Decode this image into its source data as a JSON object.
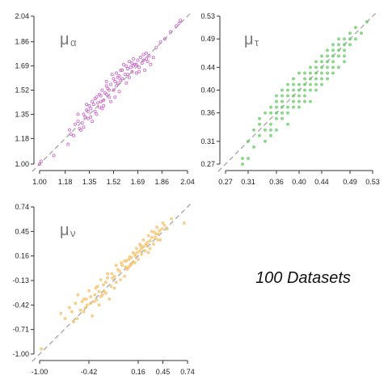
{
  "chart_data": [
    {
      "type": "scatter",
      "label": {
        "greek": "μ",
        "sub": "α"
      },
      "color": "#cc66cc",
      "marker": "open-circle",
      "xlim": [
        1.0,
        2.04
      ],
      "ylim": [
        1.0,
        2.04
      ],
      "x_ticks": [
        "1.00",
        "1.18",
        "1.35",
        "1.52",
        "1.69",
        "1.86",
        "2.04"
      ],
      "y_ticks": [
        "1.00",
        "1.18",
        "1.35",
        "1.52",
        "1.69",
        "1.86",
        "2.04"
      ],
      "reference_line": "y = x (dashed grey)",
      "points": [
        [
          1.0,
          1.0
        ],
        [
          1.01,
          1.02
        ],
        [
          1.1,
          1.06
        ],
        [
          1.2,
          1.14
        ],
        [
          1.21,
          1.24
        ],
        [
          1.22,
          1.21
        ],
        [
          1.25,
          1.28
        ],
        [
          1.27,
          1.3
        ],
        [
          1.28,
          1.25
        ],
        [
          1.29,
          1.24
        ],
        [
          1.3,
          1.29
        ],
        [
          1.31,
          1.35
        ],
        [
          1.32,
          1.33
        ],
        [
          1.33,
          1.38
        ],
        [
          1.34,
          1.37
        ],
        [
          1.35,
          1.41
        ],
        [
          1.36,
          1.39
        ],
        [
          1.37,
          1.44
        ],
        [
          1.37,
          1.3
        ],
        [
          1.38,
          1.42
        ],
        [
          1.39,
          1.46
        ],
        [
          1.4,
          1.35
        ],
        [
          1.4,
          1.47
        ],
        [
          1.41,
          1.43
        ],
        [
          1.42,
          1.4
        ],
        [
          1.43,
          1.48
        ],
        [
          1.44,
          1.52
        ],
        [
          1.44,
          1.39
        ],
        [
          1.45,
          1.45
        ],
        [
          1.46,
          1.5
        ],
        [
          1.47,
          1.55
        ],
        [
          1.47,
          1.58
        ],
        [
          1.48,
          1.53
        ],
        [
          1.49,
          1.47
        ],
        [
          1.5,
          1.56
        ],
        [
          1.51,
          1.63
        ],
        [
          1.52,
          1.6
        ],
        [
          1.52,
          1.52
        ],
        [
          1.53,
          1.58
        ],
        [
          1.54,
          1.64
        ],
        [
          1.55,
          1.57
        ],
        [
          1.56,
          1.51
        ],
        [
          1.56,
          1.62
        ],
        [
          1.57,
          1.66
        ],
        [
          1.58,
          1.6
        ],
        [
          1.59,
          1.7
        ],
        [
          1.6,
          1.63
        ],
        [
          1.61,
          1.57
        ],
        [
          1.62,
          1.67
        ],
        [
          1.63,
          1.72
        ],
        [
          1.63,
          1.61
        ],
        [
          1.64,
          1.68
        ],
        [
          1.65,
          1.65
        ],
        [
          1.66,
          1.74
        ],
        [
          1.67,
          1.7
        ],
        [
          1.68,
          1.64
        ],
        [
          1.69,
          1.73
        ],
        [
          1.7,
          1.68
        ],
        [
          1.71,
          1.75
        ],
        [
          1.72,
          1.71
        ],
        [
          1.73,
          1.77
        ],
        [
          1.74,
          1.66
        ],
        [
          1.75,
          1.74
        ],
        [
          1.76,
          1.72
        ],
        [
          1.77,
          1.76
        ],
        [
          1.78,
          1.7
        ],
        [
          1.8,
          1.75
        ],
        [
          1.82,
          1.82
        ],
        [
          1.85,
          1.86
        ],
        [
          1.88,
          1.88
        ],
        [
          1.92,
          1.93
        ],
        [
          1.96,
          1.97
        ],
        [
          1.98,
          1.99
        ],
        [
          1.99,
          2.01
        ],
        [
          1.27,
          1.35
        ],
        [
          1.33,
          1.42
        ],
        [
          1.39,
          1.37
        ],
        [
          1.45,
          1.41
        ],
        [
          1.49,
          1.52
        ],
        [
          1.54,
          1.55
        ],
        [
          1.58,
          1.66
        ],
        [
          1.62,
          1.63
        ],
        [
          1.66,
          1.69
        ],
        [
          1.7,
          1.65
        ],
        [
          1.31,
          1.26
        ],
        [
          1.42,
          1.49
        ],
        [
          1.5,
          1.44
        ],
        [
          1.57,
          1.59
        ],
        [
          1.65,
          1.71
        ],
        [
          1.73,
          1.73
        ],
        [
          1.24,
          1.2
        ],
        [
          1.36,
          1.33
        ],
        [
          1.47,
          1.49
        ],
        [
          1.53,
          1.47
        ],
        [
          1.61,
          1.69
        ],
        [
          1.68,
          1.7
        ],
        [
          1.75,
          1.78
        ],
        [
          1.43,
          1.44
        ],
        [
          1.34,
          1.32
        ],
        [
          1.55,
          1.61
        ]
      ]
    },
    {
      "type": "scatter",
      "label": {
        "greek": "μ",
        "sub": "τ"
      },
      "color": "#66cc66",
      "marker": "filled-dot",
      "xlim": [
        0.27,
        0.53
      ],
      "ylim": [
        0.27,
        0.53
      ],
      "x_ticks": [
        "0.27",
        "0.31",
        "0.36",
        "0.40",
        "0.44",
        "0.49",
        "0.53"
      ],
      "y_ticks": [
        "0.27",
        "0.31",
        "0.36",
        "0.40",
        "0.44",
        "0.49",
        "0.53"
      ],
      "reference_line": "y = x (dashed grey)",
      "points": [
        [
          0.3,
          0.27
        ],
        [
          0.3,
          0.28
        ],
        [
          0.31,
          0.28
        ],
        [
          0.32,
          0.3
        ],
        [
          0.33,
          0.32
        ],
        [
          0.33,
          0.34
        ],
        [
          0.34,
          0.31
        ],
        [
          0.34,
          0.33
        ],
        [
          0.35,
          0.33
        ],
        [
          0.35,
          0.36
        ],
        [
          0.35,
          0.37
        ],
        [
          0.36,
          0.35
        ],
        [
          0.36,
          0.36
        ],
        [
          0.36,
          0.38
        ],
        [
          0.37,
          0.37
        ],
        [
          0.37,
          0.4
        ],
        [
          0.37,
          0.35
        ],
        [
          0.38,
          0.39
        ],
        [
          0.38,
          0.36
        ],
        [
          0.38,
          0.41
        ],
        [
          0.39,
          0.38
        ],
        [
          0.39,
          0.37
        ],
        [
          0.39,
          0.4
        ],
        [
          0.4,
          0.39
        ],
        [
          0.4,
          0.41
        ],
        [
          0.4,
          0.38
        ],
        [
          0.41,
          0.4
        ],
        [
          0.41,
          0.42
        ],
        [
          0.41,
          0.39
        ],
        [
          0.42,
          0.41
        ],
        [
          0.42,
          0.43
        ],
        [
          0.42,
          0.38
        ],
        [
          0.43,
          0.42
        ],
        [
          0.43,
          0.44
        ],
        [
          0.43,
          0.4
        ],
        [
          0.44,
          0.43
        ],
        [
          0.44,
          0.45
        ],
        [
          0.44,
          0.41
        ],
        [
          0.45,
          0.44
        ],
        [
          0.45,
          0.46
        ],
        [
          0.45,
          0.42
        ],
        [
          0.46,
          0.45
        ],
        [
          0.46,
          0.47
        ],
        [
          0.46,
          0.43
        ],
        [
          0.47,
          0.46
        ],
        [
          0.47,
          0.48
        ],
        [
          0.47,
          0.44
        ],
        [
          0.48,
          0.47
        ],
        [
          0.48,
          0.49
        ],
        [
          0.48,
          0.45
        ],
        [
          0.49,
          0.48
        ],
        [
          0.49,
          0.5
        ],
        [
          0.5,
          0.49
        ],
        [
          0.5,
          0.51
        ],
        [
          0.51,
          0.5
        ],
        [
          0.52,
          0.52
        ],
        [
          0.35,
          0.34
        ],
        [
          0.36,
          0.33
        ],
        [
          0.37,
          0.38
        ],
        [
          0.38,
          0.37
        ],
        [
          0.39,
          0.41
        ],
        [
          0.4,
          0.4
        ],
        [
          0.41,
          0.43
        ],
        [
          0.42,
          0.42
        ],
        [
          0.43,
          0.45
        ],
        [
          0.44,
          0.44
        ],
        [
          0.45,
          0.47
        ],
        [
          0.46,
          0.46
        ],
        [
          0.47,
          0.49
        ],
        [
          0.34,
          0.36
        ],
        [
          0.36,
          0.39
        ],
        [
          0.38,
          0.34
        ],
        [
          0.4,
          0.37
        ],
        [
          0.42,
          0.44
        ],
        [
          0.44,
          0.46
        ],
        [
          0.46,
          0.48
        ],
        [
          0.33,
          0.35
        ],
        [
          0.39,
          0.42
        ],
        [
          0.43,
          0.41
        ],
        [
          0.47,
          0.47
        ],
        [
          0.32,
          0.33
        ],
        [
          0.37,
          0.36
        ],
        [
          0.41,
          0.38
        ],
        [
          0.45,
          0.45
        ],
        [
          0.48,
          0.48
        ],
        [
          0.35,
          0.32
        ],
        [
          0.4,
          0.43
        ],
        [
          0.44,
          0.42
        ],
        [
          0.31,
          0.31
        ],
        [
          0.36,
          0.37
        ],
        [
          0.39,
          0.39
        ],
        [
          0.42,
          0.4
        ],
        [
          0.46,
          0.44
        ],
        [
          0.49,
          0.49
        ],
        [
          0.38,
          0.4
        ],
        [
          0.43,
          0.43
        ],
        [
          0.37,
          0.39
        ],
        [
          0.41,
          0.41
        ],
        [
          0.45,
          0.43
        ],
        [
          0.48,
          0.46
        ]
      ]
    },
    {
      "type": "scatter",
      "label": {
        "greek": "μ",
        "sub": "ν"
      },
      "color": "#f5c26b",
      "marker": "filled-dot",
      "xlim": [
        -1.0,
        0.74
      ],
      "ylim": [
        -1.0,
        0.74
      ],
      "x_ticks": [
        "-1.00",
        "-0.42",
        "0.16",
        "0.45",
        "0.74"
      ],
      "x_tick_values": [
        -1.0,
        -0.42,
        0.16,
        0.45,
        0.74
      ],
      "y_ticks": [
        "-1.00",
        "-0.71",
        "-0.42",
        "-0.13",
        "0.16",
        "0.45",
        "0.74"
      ],
      "reference_line": "y = x (dashed grey)",
      "points": [
        [
          -0.98,
          -0.94
        ],
        [
          -0.75,
          -0.52
        ],
        [
          -0.65,
          -0.45
        ],
        [
          -0.62,
          -0.5
        ],
        [
          -0.55,
          -0.3
        ],
        [
          -0.5,
          -0.38
        ],
        [
          -0.45,
          -0.35
        ],
        [
          -0.42,
          -0.25
        ],
        [
          -0.4,
          -0.4
        ],
        [
          -0.38,
          -0.55
        ],
        [
          -0.35,
          -0.3
        ],
        [
          -0.32,
          -0.2
        ],
        [
          -0.3,
          -0.42
        ],
        [
          -0.28,
          -0.32
        ],
        [
          -0.25,
          -0.18
        ],
        [
          -0.22,
          -0.28
        ],
        [
          -0.2,
          -0.1
        ],
        [
          -0.18,
          -0.35
        ],
        [
          -0.15,
          -0.05
        ],
        [
          -0.12,
          -0.22
        ],
        [
          -0.1,
          -0.15
        ],
        [
          -0.08,
          0.0
        ],
        [
          -0.05,
          -0.12
        ],
        [
          -0.03,
          0.05
        ],
        [
          0.0,
          -0.08
        ],
        [
          0.02,
          0.1
        ],
        [
          0.04,
          0.02
        ],
        [
          0.06,
          0.15
        ],
        [
          0.08,
          0.06
        ],
        [
          0.1,
          0.2
        ],
        [
          0.12,
          0.08
        ],
        [
          0.14,
          0.25
        ],
        [
          0.16,
          0.12
        ],
        [
          0.18,
          0.3
        ],
        [
          0.2,
          0.18
        ],
        [
          0.22,
          0.35
        ],
        [
          0.24,
          0.22
        ],
        [
          0.26,
          0.28
        ],
        [
          0.28,
          0.4
        ],
        [
          0.3,
          0.25
        ],
        [
          0.32,
          0.45
        ],
        [
          0.34,
          0.3
        ],
        [
          0.36,
          0.38
        ],
        [
          0.38,
          0.5
        ],
        [
          0.4,
          0.42
        ],
        [
          0.42,
          0.35
        ],
        [
          0.45,
          0.55
        ],
        [
          0.5,
          0.48
        ],
        [
          0.55,
          0.6
        ],
        [
          0.7,
          0.55
        ],
        [
          -0.6,
          -0.62
        ],
        [
          -0.48,
          -0.5
        ],
        [
          -0.36,
          -0.38
        ],
        [
          -0.24,
          -0.26
        ],
        [
          -0.12,
          -0.08
        ],
        [
          0.01,
          0.03
        ],
        [
          0.13,
          0.16
        ],
        [
          0.25,
          0.3
        ],
        [
          0.37,
          0.42
        ],
        [
          -0.7,
          -0.58
        ],
        [
          -0.58,
          -0.4
        ],
        [
          -0.46,
          -0.45
        ],
        [
          -0.34,
          -0.22
        ],
        [
          -0.22,
          -0.15
        ],
        [
          -0.1,
          0.05
        ],
        [
          0.03,
          0.0
        ],
        [
          0.15,
          0.2
        ],
        [
          0.27,
          0.32
        ],
        [
          0.39,
          0.35
        ],
        [
          -0.52,
          -0.48
        ],
        [
          -0.4,
          -0.32
        ],
        [
          -0.28,
          -0.12
        ],
        [
          -0.16,
          -0.2
        ],
        [
          -0.04,
          0.08
        ],
        [
          0.08,
          0.14
        ],
        [
          0.2,
          0.25
        ],
        [
          0.32,
          0.38
        ],
        [
          0.44,
          0.48
        ],
        [
          -0.44,
          -0.42
        ],
        [
          -0.2,
          -0.05
        ],
        [
          0.05,
          0.12
        ],
        [
          0.18,
          0.22
        ],
        [
          0.3,
          0.34
        ],
        [
          -0.56,
          -0.58
        ],
        [
          -0.3,
          -0.26
        ],
        [
          -0.06,
          -0.02
        ],
        [
          0.1,
          0.09
        ],
        [
          0.22,
          0.27
        ],
        [
          0.35,
          0.44
        ],
        [
          0.47,
          0.52
        ],
        [
          -0.33,
          -0.36
        ],
        [
          -0.14,
          -0.1
        ],
        [
          0.06,
          0.04
        ],
        [
          0.19,
          0.28
        ],
        [
          0.28,
          0.2
        ],
        [
          0.41,
          0.46
        ],
        [
          -0.48,
          -0.35
        ],
        [
          -0.26,
          -0.3
        ],
        [
          0.0,
          0.1
        ],
        [
          0.12,
          0.18
        ]
      ]
    }
  ],
  "annotation": "100 Datasets"
}
